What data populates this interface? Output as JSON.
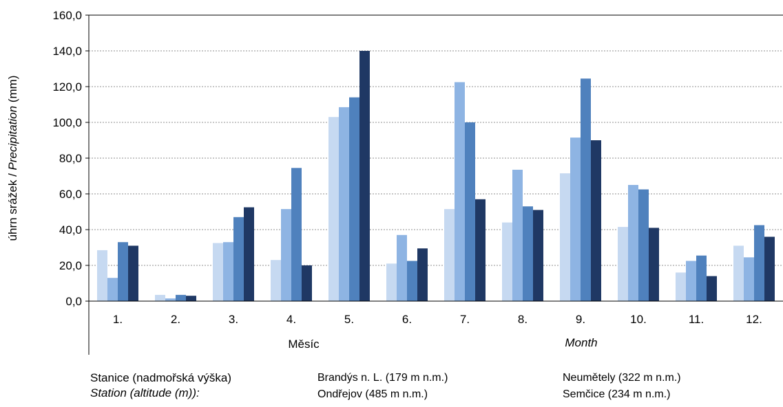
{
  "chart_data": {
    "type": "bar",
    "categories": [
      "1.",
      "2.",
      "3.",
      "4.",
      "5.",
      "6.",
      "7.",
      "8.",
      "9.",
      "10.",
      "11.",
      "12."
    ],
    "series": [
      {
        "name": "Brandýs n. L. (179 m n.m.)",
        "color": "#c6d9f1",
        "values": [
          28.5,
          3.5,
          32.5,
          23.0,
          103.0,
          21.0,
          51.5,
          44.0,
          71.5,
          41.5,
          16.0,
          31.0
        ]
      },
      {
        "name": "Neumětely (322 m n.m.)",
        "color": "#8eb4e3",
        "values": [
          13.0,
          1.5,
          33.0,
          51.5,
          108.5,
          37.0,
          122.5,
          73.5,
          91.5,
          65.0,
          22.5,
          24.5
        ]
      },
      {
        "name": "Ondřejov (485 m n.m.)",
        "color": "#4f81bd",
        "values": [
          33.0,
          3.5,
          47.0,
          74.5,
          114.0,
          22.5,
          100.0,
          53.0,
          124.5,
          62.5,
          25.5,
          42.5
        ]
      },
      {
        "name": "Semčice (234 m n.m.)",
        "color": "#1f3864",
        "values": [
          31.0,
          3.0,
          52.5,
          20.0,
          140.0,
          29.5,
          57.0,
          51.0,
          90.0,
          41.0,
          14.0,
          36.0
        ]
      }
    ],
    "ylim": [
      0,
      160
    ],
    "yticks": [
      "0,0",
      "20,0",
      "40,0",
      "60,0",
      "80,0",
      "100,0",
      "120,0",
      "140,0",
      "160,0"
    ],
    "ylabel_normal": "úhrn srážek / ",
    "ylabel_italic": "Precipitation",
    "ylabel_unit": " (mm)",
    "xlabel_cz": "Měsíc",
    "xlabel_en": "Month",
    "grid": true
  },
  "legend": {
    "title_cz": "Stanice (nadmořská výška)",
    "title_en": "Station (altitude (m)):"
  }
}
